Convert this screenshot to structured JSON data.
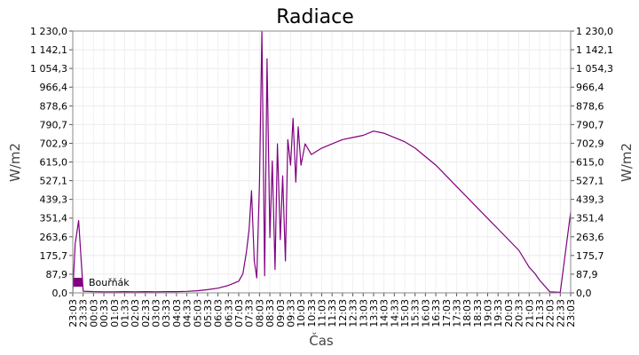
{
  "chart_data": {
    "type": "line",
    "title": "Radiace",
    "xlabel": "Čas",
    "ylabel_left": "W/m2",
    "ylabel_right": "W/m2",
    "ylim": [
      0,
      1230
    ],
    "y_ticks": [
      "0,0",
      "87,9",
      "175,7",
      "263,6",
      "351,4",
      "439,3",
      "527,1",
      "615,0",
      "702,9",
      "790,7",
      "878,6",
      "966,4",
      "1 054,3",
      "1 142,1",
      "1 230,0"
    ],
    "x_ticks": [
      "23:03",
      "23:33",
      "00:03",
      "00:33",
      "01:03",
      "01:33",
      "02:03",
      "02:33",
      "03:03",
      "03:33",
      "04:03",
      "04:33",
      "05:03",
      "05:33",
      "06:03",
      "06:33",
      "07:03",
      "07:33",
      "08:03",
      "08:33",
      "09:03",
      "09:33",
      "10:03",
      "10:33",
      "11:03",
      "11:33",
      "12:03",
      "12:33",
      "13:03",
      "13:33",
      "14:03",
      "14:33",
      "15:03",
      "15:33",
      "16:03",
      "16:33",
      "17:03",
      "17:33",
      "18:03",
      "18:33",
      "19:03",
      "19:33",
      "20:03",
      "20:33",
      "21:03",
      "21:33",
      "22:03",
      "22:33",
      "23:03"
    ],
    "grid": true,
    "legend_position": "bottom-left",
    "series": [
      {
        "name": "Bouřňák",
        "color": "#800080",
        "x": [
          "23:03",
          "23:10",
          "23:20",
          "23:33",
          "00:03",
          "00:33",
          "01:03",
          "01:33",
          "02:03",
          "02:33",
          "03:03",
          "03:33",
          "04:03",
          "04:33",
          "05:03",
          "05:33",
          "06:03",
          "06:33",
          "07:03",
          "07:15",
          "07:25",
          "07:33",
          "07:40",
          "07:48",
          "07:55",
          "08:03",
          "08:10",
          "08:18",
          "08:25",
          "08:33",
          "08:40",
          "08:48",
          "08:55",
          "09:03",
          "09:10",
          "09:18",
          "09:25",
          "09:33",
          "09:40",
          "09:48",
          "09:55",
          "10:03",
          "10:15",
          "10:33",
          "11:03",
          "11:33",
          "12:03",
          "12:33",
          "13:03",
          "13:33",
          "14:03",
          "14:33",
          "15:03",
          "15:33",
          "16:03",
          "16:33",
          "17:03",
          "17:33",
          "18:03",
          "18:33",
          "19:03",
          "19:33",
          "20:03",
          "20:33",
          "21:03",
          "21:20",
          "21:33",
          "22:03",
          "22:33",
          "23:03"
        ],
        "y": [
          5,
          230,
          340,
          8,
          6,
          5,
          5,
          6,
          5,
          6,
          5,
          6,
          6,
          7,
          10,
          15,
          22,
          35,
          55,
          90,
          190,
          300,
          480,
          150,
          70,
          520,
          1230,
          80,
          1100,
          260,
          620,
          110,
          700,
          250,
          550,
          150,
          720,
          600,
          820,
          520,
          780,
          600,
          700,
          650,
          680,
          700,
          720,
          730,
          740,
          760,
          750,
          730,
          710,
          680,
          640,
          600,
          550,
          500,
          450,
          400,
          350,
          300,
          250,
          200,
          120,
          90,
          60,
          5,
          3,
          380
        ]
      }
    ]
  }
}
